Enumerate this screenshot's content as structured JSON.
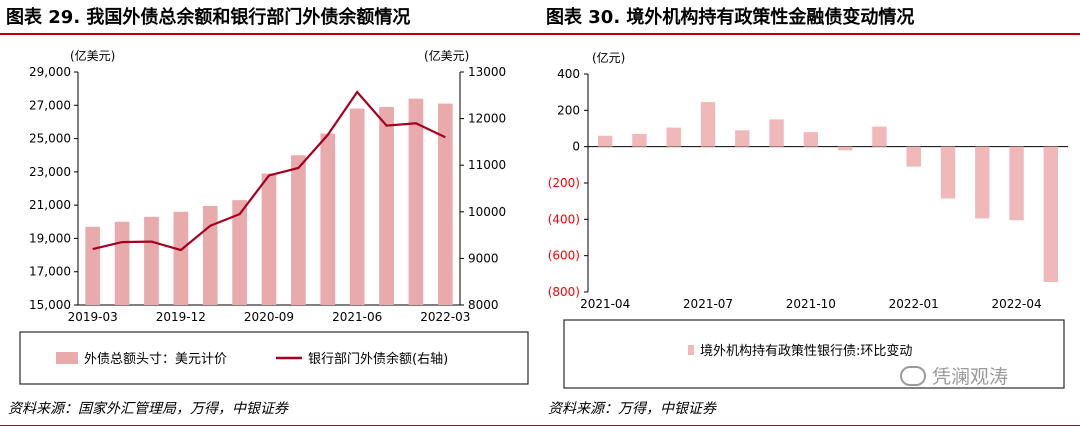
{
  "left": {
    "title": "图表 29. 我国外债总余额和银行部门外债余额情况",
    "source": "资料来源：国家外汇管理局，万得，中银证券",
    "left_unit": "(亿美元)",
    "right_unit": "(亿美元)",
    "colors": {
      "bar": "#e8aaaa",
      "line": "#a50021",
      "accent": "#c00000"
    }
  },
  "right": {
    "title": "图表 30. 境外机构持有政策性金融债变动情况",
    "source": "资料来源：万得，中银证券",
    "unit": "(亿元)",
    "colors": {
      "bar": "#f0b8b8",
      "negative_tick": "#ff0000"
    }
  },
  "watermark": {
    "text": "凭澜观涛",
    "icon": "wechat-icon"
  },
  "chart_data": [
    {
      "type": "bar+line",
      "title": "我国外债总余额和银行部门外债余额情况",
      "categories": [
        "2019-03",
        "2019-06",
        "2019-09",
        "2019-12",
        "2020-03",
        "2020-06",
        "2020-09",
        "2020-12",
        "2021-03",
        "2021-06",
        "2021-09",
        "2021-12",
        "2022-03"
      ],
      "x_tick_labels": [
        "2019-03",
        "2019-12",
        "2020-09",
        "2021-06",
        "2022-03"
      ],
      "series": [
        {
          "name": "外债总额头寸：美元计价",
          "kind": "bar",
          "axis": "left",
          "values": [
            19700,
            20000,
            20300,
            20600,
            20950,
            21300,
            22900,
            24000,
            25300,
            26800,
            26900,
            27400,
            27100
          ]
        },
        {
          "name": "银行部门外债余额(右轴)",
          "kind": "line",
          "axis": "right",
          "values": [
            9200,
            9350,
            9360,
            9180,
            9700,
            9950,
            10780,
            10940,
            11650,
            12570,
            11850,
            11900,
            11600
          ]
        }
      ],
      "left_axis": {
        "ylim": [
          15000,
          29000
        ],
        "ticks": [
          15000,
          17000,
          19000,
          21000,
          23000,
          25000,
          27000,
          29000
        ],
        "tick_labels": [
          "15,000",
          "17,000",
          "19,000",
          "21,000",
          "23,000",
          "25,000",
          "27,000",
          "29,000"
        ]
      },
      "right_axis": {
        "ylim": [
          8000,
          13000
        ],
        "ticks": [
          8000,
          9000,
          10000,
          11000,
          12000,
          13000
        ],
        "tick_labels": [
          "8000",
          "9000",
          "10000",
          "11000",
          "12000",
          "13000"
        ]
      },
      "grid": false,
      "legend_position": "bottom"
    },
    {
      "type": "bar",
      "title": "境外机构持有政策性金融债变动情况",
      "categories": [
        "2021-04",
        "2021-05",
        "2021-06",
        "2021-07",
        "2021-08",
        "2021-09",
        "2021-10",
        "2021-11",
        "2021-12",
        "2022-01",
        "2022-02",
        "2022-03",
        "2022-04",
        "2022-05"
      ],
      "x_tick_labels": [
        "2021-04",
        "2021-07",
        "2021-10",
        "2022-01",
        "2022-04"
      ],
      "series": [
        {
          "name": "境外机构持有政策性银行债:环比变动",
          "values": [
            60,
            70,
            105,
            245,
            90,
            150,
            80,
            -20,
            110,
            -110,
            -285,
            -395,
            -405,
            -745
          ]
        }
      ],
      "ylim": [
        -800,
        400
      ],
      "ticks": [
        400,
        200,
        0,
        -200,
        -400,
        -600,
        -800
      ],
      "tick_labels": [
        "400",
        "200",
        "0",
        "(200)",
        "(400)",
        "(600)",
        "(800)"
      ],
      "grid": false,
      "legend_position": "bottom"
    }
  ]
}
